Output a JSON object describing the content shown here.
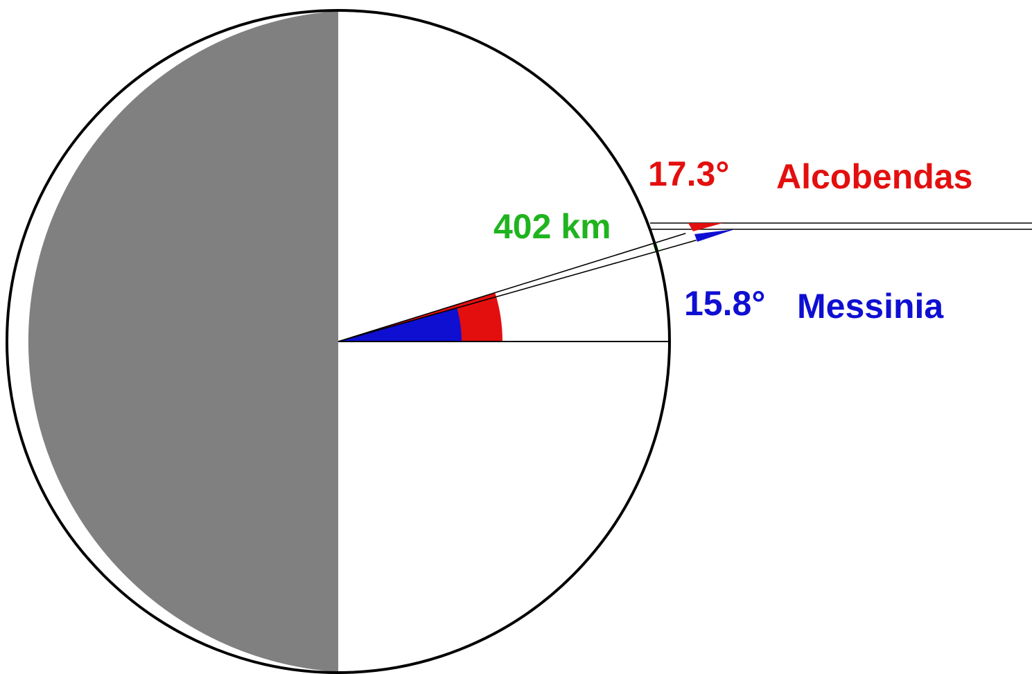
{
  "colors": {
    "dark_half": "#808080",
    "lit_half": "#ffffff",
    "outline": "#000000",
    "alcobendas": "#e30f0f",
    "messinia": "#0f0fd2",
    "distance": "#1fb41f"
  },
  "labels": {
    "alcobendas_angle": "17.3°",
    "alcobendas_name": "Alcobendas",
    "messinia_angle": "15.8°",
    "messinia_name": "Messinia",
    "distance": "402 km"
  },
  "angles": {
    "alcobendas_deg": 17.3,
    "messinia_deg": 15.8
  }
}
